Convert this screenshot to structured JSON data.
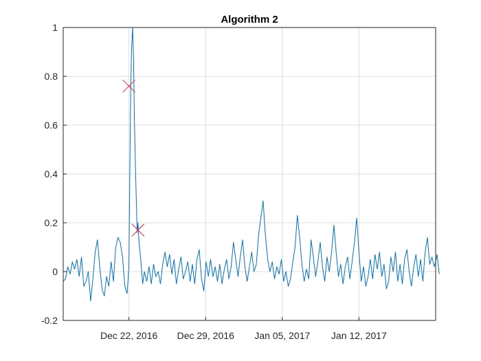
{
  "chart_data": {
    "type": "line",
    "title": "Algorithm 2",
    "xlabel": "",
    "ylabel": "",
    "x_range": [
      "2016-12-16",
      "2017-01-19"
    ],
    "ylim": [
      -0.2,
      1
    ],
    "grid": true,
    "x_ticks": [
      {
        "date": "2016-12-22",
        "label": "Dec 22, 2016"
      },
      {
        "date": "2016-12-29",
        "label": "Dec 29, 2016"
      },
      {
        "date": "2017-01-05",
        "label": "Jan 05, 2017"
      },
      {
        "date": "2017-01-12",
        "label": "Jan 12, 2017"
      }
    ],
    "y_ticks": [
      {
        "value": -0.2,
        "label": "-0.2"
      },
      {
        "value": 0,
        "label": "0"
      },
      {
        "value": 0.2,
        "label": "0.2"
      },
      {
        "value": 0.4,
        "label": "0.4"
      },
      {
        "value": 0.6,
        "label": "0.6"
      },
      {
        "value": 0.8,
        "label": "0.8"
      },
      {
        "value": 1,
        "label": "1"
      }
    ],
    "series": [
      {
        "color": "#0072BD",
        "points": [
          [
            "2016-12-16 00:00",
            -0.04
          ],
          [
            "2016-12-16 05:00",
            -0.03
          ],
          [
            "2016-12-16 10:00",
            0.02
          ],
          [
            "2016-12-16 15:00",
            -0.01
          ],
          [
            "2016-12-16 20:00",
            0.04
          ],
          [
            "2016-12-17 01:00",
            0.01
          ],
          [
            "2016-12-17 06:00",
            0.05
          ],
          [
            "2016-12-17 11:00",
            -0.02
          ],
          [
            "2016-12-17 16:00",
            0.06
          ],
          [
            "2016-12-17 21:00",
            -0.06
          ],
          [
            "2016-12-18 02:00",
            -0.04
          ],
          [
            "2016-12-18 07:00",
            0.0
          ],
          [
            "2016-12-18 12:00",
            -0.12
          ],
          [
            "2016-12-18 17:00",
            -0.03
          ],
          [
            "2016-12-18 22:00",
            0.08
          ],
          [
            "2016-12-19 03:00",
            0.13
          ],
          [
            "2016-12-19 08:00",
            0.02
          ],
          [
            "2016-12-19 13:00",
            -0.07
          ],
          [
            "2016-12-19 18:00",
            -0.1
          ],
          [
            "2016-12-19 23:00",
            -0.02
          ],
          [
            "2016-12-20 04:00",
            -0.06
          ],
          [
            "2016-12-20 09:00",
            0.04
          ],
          [
            "2016-12-20 14:00",
            -0.04
          ],
          [
            "2016-12-20 19:00",
            0.1
          ],
          [
            "2016-12-21 00:00",
            0.14
          ],
          [
            "2016-12-21 05:00",
            0.12
          ],
          [
            "2016-12-21 10:00",
            0.06
          ],
          [
            "2016-12-21 15:00",
            -0.06
          ],
          [
            "2016-12-21 20:00",
            -0.09
          ],
          [
            "2016-12-22 00:00",
            0.02
          ],
          [
            "2016-12-22 02:00",
            0.43
          ],
          [
            "2016-12-22 04:00",
            0.76
          ],
          [
            "2016-12-22 06:00",
            0.92
          ],
          [
            "2016-12-22 08:00",
            1.0
          ],
          [
            "2016-12-22 10:00",
            0.88
          ],
          [
            "2016-12-22 12:00",
            0.62
          ],
          [
            "2016-12-22 14:00",
            0.45
          ],
          [
            "2016-12-22 16:00",
            0.3
          ],
          [
            "2016-12-22 18:00",
            0.16
          ],
          [
            "2016-12-22 20:00",
            0.2
          ],
          [
            "2016-12-22 22:00",
            0.12
          ],
          [
            "2016-12-23 02:00",
            0.05
          ],
          [
            "2016-12-23 06:00",
            -0.05
          ],
          [
            "2016-12-23 10:00",
            0.0
          ],
          [
            "2016-12-23 15:00",
            -0.04
          ],
          [
            "2016-12-23 20:00",
            0.02
          ],
          [
            "2016-12-24 01:00",
            -0.05
          ],
          [
            "2016-12-24 06:00",
            0.03
          ],
          [
            "2016-12-24 11:00",
            -0.02
          ],
          [
            "2016-12-24 16:00",
            0.0
          ],
          [
            "2016-12-24 21:00",
            -0.05
          ],
          [
            "2016-12-25 02:00",
            0.03
          ],
          [
            "2016-12-25 07:00",
            0.08
          ],
          [
            "2016-12-25 12:00",
            0.02
          ],
          [
            "2016-12-25 17:00",
            0.07
          ],
          [
            "2016-12-25 22:00",
            -0.01
          ],
          [
            "2016-12-26 03:00",
            0.05
          ],
          [
            "2016-12-26 08:00",
            -0.05
          ],
          [
            "2016-12-26 13:00",
            0.01
          ],
          [
            "2016-12-26 18:00",
            0.06
          ],
          [
            "2016-12-26 23:00",
            -0.03
          ],
          [
            "2016-12-27 04:00",
            0.0
          ],
          [
            "2016-12-27 09:00",
            0.04
          ],
          [
            "2016-12-27 14:00",
            -0.04
          ],
          [
            "2016-12-27 19:00",
            0.03
          ],
          [
            "2016-12-28 00:00",
            -0.05
          ],
          [
            "2016-12-28 05:00",
            0.05
          ],
          [
            "2016-12-28 10:00",
            0.09
          ],
          [
            "2016-12-28 15:00",
            -0.03
          ],
          [
            "2016-12-28 20:00",
            -0.08
          ],
          [
            "2016-12-29 01:00",
            0.04
          ],
          [
            "2016-12-29 06:00",
            -0.02
          ],
          [
            "2016-12-29 11:00",
            0.05
          ],
          [
            "2016-12-29 16:00",
            -0.02
          ],
          [
            "2016-12-29 21:00",
            0.02
          ],
          [
            "2016-12-30 02:00",
            -0.04
          ],
          [
            "2016-12-30 07:00",
            0.03
          ],
          [
            "2016-12-30 12:00",
            -0.05
          ],
          [
            "2016-12-30 17:00",
            0.01
          ],
          [
            "2016-12-30 22:00",
            0.05
          ],
          [
            "2016-12-31 03:00",
            -0.03
          ],
          [
            "2016-12-31 08:00",
            0.02
          ],
          [
            "2016-12-31 13:00",
            0.12
          ],
          [
            "2016-12-31 18:00",
            0.05
          ],
          [
            "2016-12-31 23:00",
            -0.02
          ],
          [
            "2017-01-01 04:00",
            0.06
          ],
          [
            "2017-01-01 09:00",
            0.13
          ],
          [
            "2017-01-01 14:00",
            0.02
          ],
          [
            "2017-01-01 19:00",
            -0.04
          ],
          [
            "2017-01-02 00:00",
            0.02
          ],
          [
            "2017-01-02 05:00",
            0.08
          ],
          [
            "2017-01-02 10:00",
            0.0
          ],
          [
            "2017-01-02 15:00",
            0.03
          ],
          [
            "2017-01-02 20:00",
            0.15
          ],
          [
            "2017-01-03 01:00",
            0.22
          ],
          [
            "2017-01-03 06:00",
            0.29
          ],
          [
            "2017-01-03 11:00",
            0.15
          ],
          [
            "2017-01-03 16:00",
            0.05
          ],
          [
            "2017-01-03 21:00",
            0.0
          ],
          [
            "2017-01-04 02:00",
            0.04
          ],
          [
            "2017-01-04 07:00",
            -0.03
          ],
          [
            "2017-01-04 12:00",
            0.02
          ],
          [
            "2017-01-04 17:00",
            -0.01
          ],
          [
            "2017-01-04 22:00",
            0.05
          ],
          [
            "2017-01-05 03:00",
            -0.04
          ],
          [
            "2017-01-05 08:00",
            0.0
          ],
          [
            "2017-01-05 13:00",
            -0.06
          ],
          [
            "2017-01-05 18:00",
            -0.03
          ],
          [
            "2017-01-05 23:00",
            0.04
          ],
          [
            "2017-01-06 04:00",
            0.1
          ],
          [
            "2017-01-06 09:00",
            0.23
          ],
          [
            "2017-01-06 14:00",
            0.14
          ],
          [
            "2017-01-06 19:00",
            0.03
          ],
          [
            "2017-01-07 00:00",
            -0.04
          ],
          [
            "2017-01-07 05:00",
            0.01
          ],
          [
            "2017-01-07 10:00",
            -0.03
          ],
          [
            "2017-01-07 15:00",
            0.13
          ],
          [
            "2017-01-07 20:00",
            0.06
          ],
          [
            "2017-01-08 01:00",
            -0.02
          ],
          [
            "2017-01-08 06:00",
            0.04
          ],
          [
            "2017-01-08 11:00",
            0.12
          ],
          [
            "2017-01-08 16:00",
            0.02
          ],
          [
            "2017-01-08 21:00",
            -0.04
          ],
          [
            "2017-01-09 02:00",
            0.06
          ],
          [
            "2017-01-09 07:00",
            0.0
          ],
          [
            "2017-01-09 12:00",
            0.08
          ],
          [
            "2017-01-09 17:00",
            0.19
          ],
          [
            "2017-01-09 22:00",
            0.08
          ],
          [
            "2017-01-10 03:00",
            -0.02
          ],
          [
            "2017-01-10 08:00",
            0.03
          ],
          [
            "2017-01-10 13:00",
            -0.05
          ],
          [
            "2017-01-10 18:00",
            0.02
          ],
          [
            "2017-01-10 23:00",
            0.06
          ],
          [
            "2017-01-11 04:00",
            -0.03
          ],
          [
            "2017-01-11 09:00",
            0.04
          ],
          [
            "2017-01-11 14:00",
            0.12
          ],
          [
            "2017-01-11 19:00",
            0.22
          ],
          [
            "2017-01-12 00:00",
            0.08
          ],
          [
            "2017-01-12 05:00",
            -0.04
          ],
          [
            "2017-01-12 10:00",
            0.02
          ],
          [
            "2017-01-12 15:00",
            -0.06
          ],
          [
            "2017-01-12 20:00",
            -0.02
          ],
          [
            "2017-01-13 01:00",
            0.05
          ],
          [
            "2017-01-13 06:00",
            -0.03
          ],
          [
            "2017-01-13 11:00",
            0.07
          ],
          [
            "2017-01-13 16:00",
            0.01
          ],
          [
            "2017-01-13 21:00",
            0.08
          ],
          [
            "2017-01-14 02:00",
            -0.02
          ],
          [
            "2017-01-14 07:00",
            0.03
          ],
          [
            "2017-01-14 12:00",
            -0.07
          ],
          [
            "2017-01-14 17:00",
            -0.04
          ],
          [
            "2017-01-14 22:00",
            0.06
          ],
          [
            "2017-01-15 03:00",
            0.0
          ],
          [
            "2017-01-15 08:00",
            0.08
          ],
          [
            "2017-01-15 13:00",
            -0.04
          ],
          [
            "2017-01-15 18:00",
            0.03
          ],
          [
            "2017-01-15 23:00",
            -0.05
          ],
          [
            "2017-01-16 04:00",
            0.05
          ],
          [
            "2017-01-16 09:00",
            0.09
          ],
          [
            "2017-01-16 14:00",
            0.0
          ],
          [
            "2017-01-16 19:00",
            -0.06
          ],
          [
            "2017-01-17 00:00",
            0.02
          ],
          [
            "2017-01-17 05:00",
            0.07
          ],
          [
            "2017-01-17 10:00",
            -0.02
          ],
          [
            "2017-01-17 15:00",
            0.05
          ],
          [
            "2017-01-17 20:00",
            -0.04
          ],
          [
            "2017-01-18 01:00",
            0.08
          ],
          [
            "2017-01-18 06:00",
            0.14
          ],
          [
            "2017-01-18 11:00",
            0.03
          ],
          [
            "2017-01-18 16:00",
            0.06
          ],
          [
            "2017-01-18 21:00",
            0.02
          ],
          [
            "2017-01-19 00:00",
            0.04
          ],
          [
            "2017-01-19 03:00",
            0.07
          ],
          [
            "2017-01-19 08:00",
            -0.01
          ]
        ]
      }
    ],
    "markers": {
      "color": "#E8243C",
      "symbol": "x",
      "points": [
        [
          "2016-12-22 00:00",
          0.76
        ],
        [
          "2016-12-22 20:00",
          0.17
        ]
      ]
    }
  }
}
